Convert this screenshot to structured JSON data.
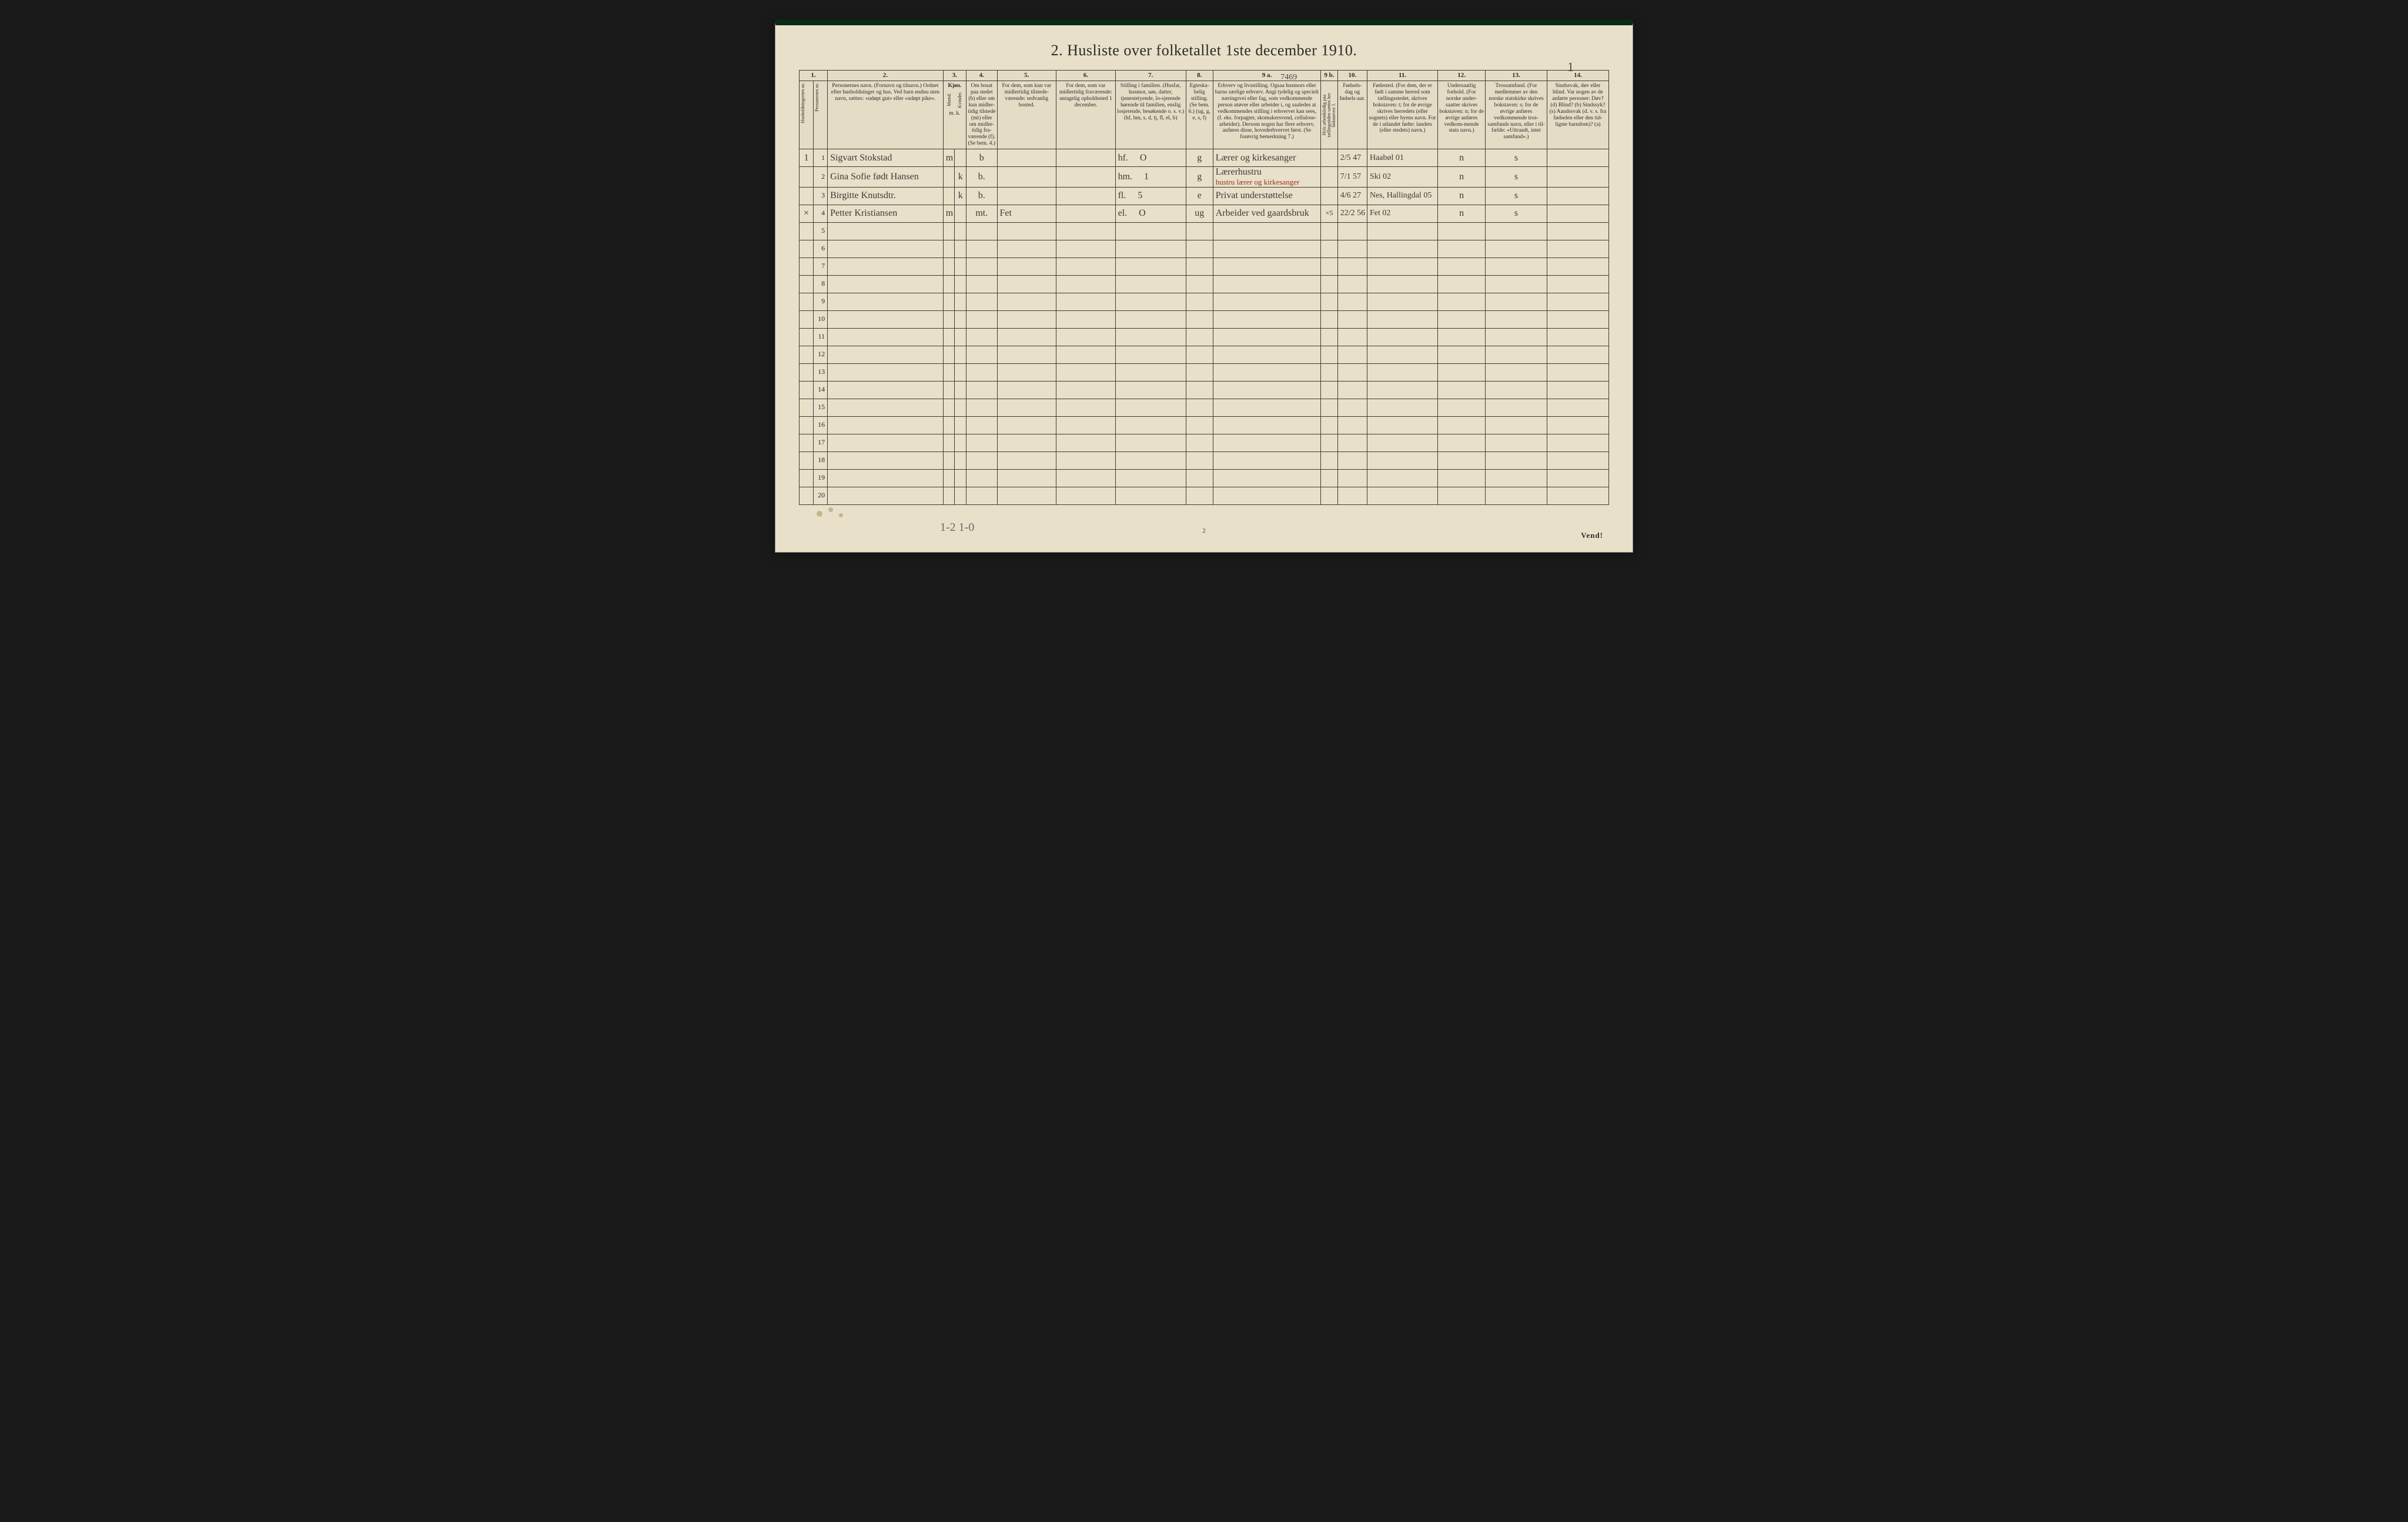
{
  "title": "2.  Husliste over folketallet 1ste december 1910.",
  "top_right_annotation": "1",
  "footer_left": "1-2   1-0",
  "footer_center": "2",
  "footer_right": "Vend!",
  "colnums": [
    "1.",
    "",
    "2.",
    "3.",
    "",
    "4.",
    "5.",
    "6.",
    "7.",
    "8.",
    "9 a.",
    "9 b.",
    "10.",
    "11.",
    "12.",
    "13.",
    "14."
  ],
  "headers": {
    "c1a": "Husholdningernes nr.",
    "c1b": "Personernes nr.",
    "c2": "Personernes navn.\n(Fornavn og tilnavn.)\nOrdnet efter husholdninger og hus.\nVed barn endnu uten navn, sættes: «udøpt gut» eller «udøpt pike».",
    "c3": "Kjøn.",
    "c3m": "Mænd.",
    "c3k": "Kvinder.",
    "c3mk": "m.  k.",
    "c4": "Om bosat paa stedet (b) eller om kun midler-tidig tilstede (mt) eller om midler-tidig fra-værende (f).\n(Se bem. 4.)",
    "c5": "For dem, som kun var midlertidig tilstede-værende:\n\nsedvanlig bosted.",
    "c6": "For dem, som var midlertidig fraværende:\n\nantagelig opholdssted 1 december.",
    "c7": "Stilling i familien.\n(Husfar, husmor, søn, datter, tjenestetyende, lo-sjerende hørende til familien, enslig losjerende, besøkende o. s. v.)\n(hf, hm, s, d, tj, fl, el, b)",
    "c8": "Egteska-belig stilling.\n(Se bem. 6.)\n(ug, g, e, s, f)",
    "c9a": "Erhverv og livsstilling.\nOgsaa husmors eller barns særlige erhverv.\nAngi tydelig og specielt næringsvei eller fag, som vedkommende person utøver eller arbeider i, og saaledes at vedkommendes stilling i erhvervet kan sees, (f. eks. forpagter, skomakersvend, cellulose-arbeider). Dersom nogen har flere erhverv, anføres disse, hovederhvervet først.\n(Se forøvrig bemerkning 7.)",
    "c9b": "Hvis arbeidsledig paa tællingstiden sættes her bokstaven: l.",
    "c10": "Fødsels-dag og fødsels-aar.",
    "c11": "Fødested.\n(For dem, der er født i samme herred som tællingsstedet, skrives bokstaven: t; for de øvrige skrives herredets (eller sognets) eller byens navn. For de i utlandet fødte: landets (eller stedets) navn.)",
    "c12": "Undersaatlig forhold.\n(For norske under-saatter skrives bokstaven: n; for de øvrige anføres vedkom-mende stats navn.)",
    "c13": "Trossamfund.\n(For medlemmer av den norske statskirke skrives bokstaven: s; for de øvrige anføres vedkommende tros-samfunds navn, eller i til-fælde: «Uttraadt, intet samfund».)",
    "c14": "Sindssvak, døv eller blind.\nVar nogen av de anførte personer:\nDøv?        (d)\nBlind?      (b)\nSindssyk?  (s)\nAandssvak (d. v. s. fra fødselen eller den tid-ligste barndom)? (a)"
  },
  "header_annotation_9a": "7469",
  "rows": [
    {
      "hh": "1",
      "pnum": "1",
      "name": "Sigvart Stokstad",
      "sex_m": "m",
      "sex_k": "",
      "resid": "b",
      "c5": "",
      "c6": "",
      "c7_pos": "hf.",
      "c7_extra": "O",
      "c8": "g",
      "c9a": "Lærer og kirkesanger",
      "c9a_red": "",
      "c9b": "",
      "c10": "2/5 47",
      "c11": "Haabøl  01",
      "c12": "n",
      "c13": "s",
      "c14": ""
    },
    {
      "hh": "",
      "pnum": "2",
      "name": "Gina Sofie født Hansen",
      "sex_m": "",
      "sex_k": "k",
      "resid": "b.",
      "c5": "",
      "c6": "",
      "c7_pos": "hm.",
      "c7_extra": "1",
      "c8": "g",
      "c9a": "Lærerhustru",
      "c9a_red": "hustru lærer og kirkesanger",
      "c9b": "",
      "c10": "7/1 57",
      "c11": "Ski  02",
      "c12": "n",
      "c13": "s",
      "c14": ""
    },
    {
      "hh": "",
      "pnum": "3",
      "name": "Birgitte Knutsdtr.",
      "sex_m": "",
      "sex_k": "k",
      "resid": "b.",
      "c5": "",
      "c6": "",
      "c7_pos": "fl.",
      "c7_extra": "5",
      "c8": "e",
      "c9a": "Privat understøttelse",
      "c9a_red": "",
      "c9b": "",
      "c10": "4/6 27",
      "c11": "Nes, Hallingdal   05",
      "c12": "n",
      "c13": "s",
      "c14": ""
    },
    {
      "hh": "×",
      "pnum": "4",
      "name": "Petter Kristiansen",
      "sex_m": "m",
      "sex_k": "",
      "resid": "mt.",
      "c5": "Fet",
      "c6": "",
      "c7_pos": "el.",
      "c7_extra": "O",
      "c8": "ug",
      "c9a": "Arbeider ved gaardsbruk",
      "c9a_red": "",
      "c9b": "×5",
      "c10": "22/2 56",
      "c11": "Fet  02",
      "c12": "n",
      "c13": "s",
      "c14": ""
    }
  ],
  "empty_row_count": 16
}
